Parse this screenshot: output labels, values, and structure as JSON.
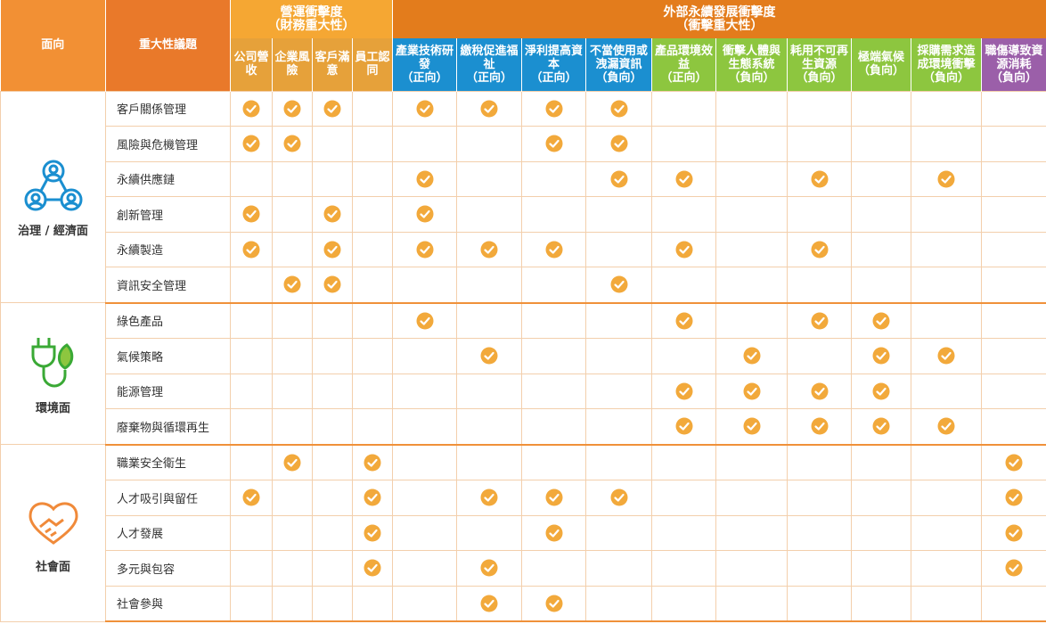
{
  "header": {
    "face": "面向",
    "topic": "重大性議題",
    "operational": {
      "title": "營運衝擊度",
      "subtitle": "（財務重大性）",
      "columns": [
        {
          "name": "公司營收"
        },
        {
          "name": "企業風險"
        },
        {
          "name": "客戶滿意"
        },
        {
          "name": "員工認同"
        }
      ]
    },
    "external": {
      "title": "外部永續發展衝擊度",
      "subtitle": "（衝擊重大性）",
      "columns": [
        {
          "name": "產業技術研發",
          "direction": "（正向）",
          "color": "#1b8fd0"
        },
        {
          "name": "繳稅促進福祉",
          "direction": "（正向）",
          "color": "#1b8fd0"
        },
        {
          "name": "淨利提高資本",
          "direction": "（正向）",
          "color": "#1b8fd0"
        },
        {
          "name": "不當使用或洩漏資訊",
          "direction": "（負向）",
          "color": "#1b8fd0"
        },
        {
          "name": "產品環境效益",
          "direction": "（正向）",
          "color": "#8dc63f"
        },
        {
          "name": "衝擊人體與生態系統",
          "direction": "（負向）",
          "color": "#8dc63f"
        },
        {
          "name": "耗用不可再生資源",
          "direction": "（負向）",
          "color": "#8dc63f"
        },
        {
          "name": "極端氣候",
          "direction": "（負向）",
          "color": "#8dc63f"
        },
        {
          "name": "採購需求造成環境衝擊",
          "direction": "（負向）",
          "color": "#8dc63f"
        },
        {
          "name": "職傷導致資源消耗",
          "direction": "（負向）",
          "color": "#9b5fa9"
        }
      ]
    }
  },
  "groups": [
    {
      "face": "治理 / 經濟面",
      "topics": [
        {
          "name": "客戶關係管理",
          "checks": [
            true,
            true,
            true,
            false,
            true,
            true,
            true,
            true,
            false,
            false,
            false,
            false,
            false,
            false
          ]
        },
        {
          "name": "風險與危機管理",
          "checks": [
            true,
            true,
            false,
            false,
            false,
            false,
            true,
            true,
            false,
            false,
            false,
            false,
            false,
            false
          ]
        },
        {
          "name": "永續供應鏈",
          "checks": [
            false,
            false,
            false,
            false,
            true,
            false,
            false,
            true,
            true,
            false,
            true,
            false,
            true,
            false
          ]
        },
        {
          "name": "創新管理",
          "checks": [
            true,
            false,
            true,
            false,
            true,
            false,
            false,
            false,
            false,
            false,
            false,
            false,
            false,
            false
          ]
        },
        {
          "name": "永續製造",
          "checks": [
            true,
            false,
            true,
            false,
            true,
            true,
            true,
            false,
            true,
            false,
            true,
            false,
            false,
            false
          ]
        },
        {
          "name": "資訊安全管理",
          "checks": [
            false,
            true,
            true,
            false,
            false,
            false,
            false,
            true,
            false,
            false,
            false,
            false,
            false,
            false
          ]
        }
      ]
    },
    {
      "face": "環境面",
      "topics": [
        {
          "name": "綠色產品",
          "checks": [
            false,
            false,
            false,
            false,
            true,
            false,
            false,
            false,
            true,
            false,
            true,
            true,
            false,
            false
          ]
        },
        {
          "name": "氣候策略",
          "checks": [
            false,
            false,
            false,
            false,
            false,
            true,
            false,
            false,
            false,
            true,
            false,
            true,
            true,
            false
          ]
        },
        {
          "name": "能源管理",
          "checks": [
            false,
            false,
            false,
            false,
            false,
            false,
            false,
            false,
            true,
            true,
            true,
            true,
            false,
            false
          ]
        },
        {
          "name": "廢棄物與循環再生",
          "checks": [
            false,
            false,
            false,
            false,
            false,
            false,
            false,
            false,
            true,
            true,
            true,
            true,
            true,
            false
          ]
        }
      ]
    },
    {
      "face": "社會面",
      "topics": [
        {
          "name": "職業安全衛生",
          "checks": [
            false,
            true,
            false,
            true,
            false,
            false,
            false,
            false,
            false,
            false,
            false,
            false,
            false,
            true
          ]
        },
        {
          "name": "人才吸引與留任",
          "checks": [
            true,
            false,
            false,
            true,
            false,
            true,
            true,
            true,
            false,
            false,
            false,
            false,
            false,
            true
          ]
        },
        {
          "name": "人才發展",
          "checks": [
            false,
            false,
            false,
            true,
            false,
            false,
            true,
            false,
            false,
            false,
            false,
            false,
            false,
            true
          ]
        },
        {
          "name": "多元與包容",
          "checks": [
            false,
            false,
            false,
            true,
            false,
            true,
            false,
            false,
            false,
            false,
            false,
            false,
            false,
            true
          ]
        },
        {
          "name": "社會參與",
          "checks": [
            false,
            false,
            false,
            false,
            false,
            true,
            true,
            false,
            false,
            false,
            false,
            false,
            false,
            false
          ]
        }
      ]
    }
  ]
}
